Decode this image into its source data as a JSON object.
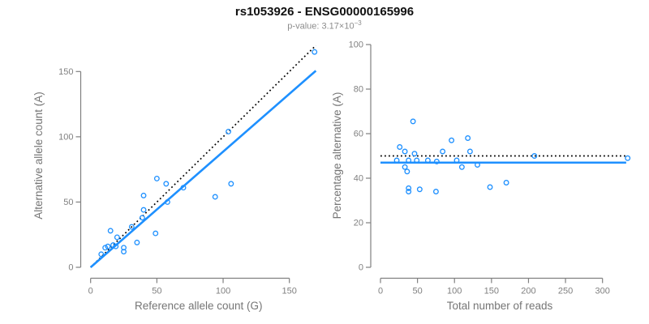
{
  "header": {
    "title": "rs1053926 - ENSG00000165996",
    "subtitle_prefix": "p-value: 3.17×10",
    "subtitle_exponent": "−3"
  },
  "colors": {
    "points": "#1e90ff",
    "trend_line": "#1e90ff",
    "reference_line": "#000000",
    "axis": "#808080",
    "tick_text": "#808080",
    "axis_title_text": "#757575",
    "title_text": "#111111",
    "subtitle_text": "#8c8c8c"
  },
  "chart_data": [
    {
      "type": "scatter",
      "name": "allele-count-scatter",
      "xlabel": "Reference allele count (G)",
      "ylabel": "Alternative allele count (A)",
      "xlim": [
        0,
        172
      ],
      "ylim": [
        0,
        172
      ],
      "xticks": [
        0,
        50,
        100,
        150
      ],
      "yticks": [
        0,
        50,
        100,
        150
      ],
      "grid": false,
      "legend": "none",
      "points": [
        [
          8,
          10
        ],
        [
          11,
          15
        ],
        [
          13,
          16
        ],
        [
          15,
          28
        ],
        [
          17,
          17
        ],
        [
          19,
          16
        ],
        [
          20,
          23
        ],
        [
          25,
          15
        ],
        [
          25,
          12
        ],
        [
          31,
          31
        ],
        [
          35,
          19
        ],
        [
          39,
          38
        ],
        [
          40,
          44
        ],
        [
          40,
          55
        ],
        [
          49,
          26
        ],
        [
          50,
          68
        ],
        [
          57,
          64
        ],
        [
          58,
          50
        ],
        [
          70,
          61
        ],
        [
          94,
          54
        ],
        [
          104,
          104
        ],
        [
          106,
          64
        ],
        [
          169,
          165
        ]
      ],
      "lines": [
        {
          "name": "identity-line",
          "style": "dotted",
          "color": "#000000",
          "from": [
            0,
            0
          ],
          "to": [
            170,
            170
          ]
        },
        {
          "name": "regression-line",
          "style": "solid",
          "color": "#1e90ff",
          "from": [
            0,
            0
          ],
          "to": [
            170,
            150.6
          ]
        }
      ]
    },
    {
      "type": "scatter",
      "name": "percentage-scatter",
      "xlabel": "Total number of reads",
      "ylabel": "Percentage alternative (A)",
      "xlim": [
        0,
        336
      ],
      "ylim": [
        0,
        100
      ],
      "xticks": [
        0,
        50,
        100,
        150,
        200,
        250,
        300
      ],
      "yticks": [
        0,
        20,
        40,
        60,
        80,
        100
      ],
      "grid": false,
      "legend": "none",
      "points": [
        [
          22,
          48
        ],
        [
          26,
          54
        ],
        [
          33,
          52
        ],
        [
          33,
          45
        ],
        [
          36,
          43
        ],
        [
          38,
          48
        ],
        [
          38,
          35.5
        ],
        [
          38,
          34
        ],
        [
          44,
          65.5
        ],
        [
          46,
          51
        ],
        [
          49,
          48
        ],
        [
          53,
          35
        ],
        [
          64,
          48
        ],
        [
          75,
          34
        ],
        [
          76,
          47.5
        ],
        [
          84,
          52
        ],
        [
          96,
          57
        ],
        [
          103,
          48
        ],
        [
          110,
          45
        ],
        [
          118,
          58
        ],
        [
          121,
          52
        ],
        [
          131,
          46
        ],
        [
          148,
          36
        ],
        [
          170,
          38
        ],
        [
          208,
          50
        ],
        [
          334,
          49
        ]
      ],
      "lines": [
        {
          "name": "expected-50-line",
          "style": "dotted",
          "color": "#000000",
          "from": [
            0,
            50
          ],
          "to": [
            332,
            50
          ]
        },
        {
          "name": "mean-percentage-line",
          "style": "solid",
          "color": "#1e90ff",
          "from": [
            0,
            47
          ],
          "to": [
            332,
            47
          ]
        }
      ]
    }
  ]
}
